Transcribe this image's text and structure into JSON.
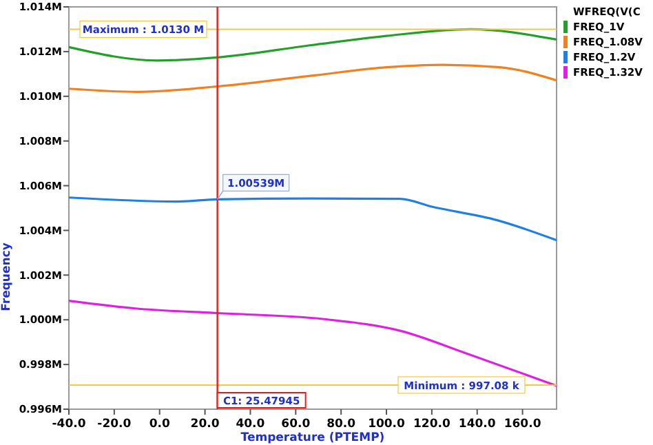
{
  "chart_data": {
    "type": "line",
    "xlabel": "Temperature (PTEMP)",
    "ylabel": "Frequency",
    "legend_title": "WFREQ(V(C",
    "legend": "right",
    "grid": false,
    "marker": "none",
    "line_style": "solid",
    "xlim": [
      -40,
      175
    ],
    "xticks": [
      {
        "value": -40,
        "label": "-40.0"
      },
      {
        "value": -20,
        "label": "-20.0"
      },
      {
        "value": 0,
        "label": "0.0"
      },
      {
        "value": 20,
        "label": "20.0"
      },
      {
        "value": 40,
        "label": "40.0"
      },
      {
        "value": 60,
        "label": "60.0"
      },
      {
        "value": 80,
        "label": "80.0"
      },
      {
        "value": 100,
        "label": "100.0"
      },
      {
        "value": 120,
        "label": "120.0"
      },
      {
        "value": 140,
        "label": "140.0"
      },
      {
        "value": 160,
        "label": "160.0"
      }
    ],
    "ylim": [
      0.996,
      1.014
    ],
    "yticks": [
      {
        "value": 0.996,
        "label": "0.996M"
      },
      {
        "value": 0.998,
        "label": "0.998M"
      },
      {
        "value": 1.0,
        "label": "1.000M"
      },
      {
        "value": 1.002,
        "label": "1.002M"
      },
      {
        "value": 1.004,
        "label": "1.004M"
      },
      {
        "value": 1.006,
        "label": "1.006M"
      },
      {
        "value": 1.008,
        "label": "1.008M"
      },
      {
        "value": 1.01,
        "label": "1.010M"
      },
      {
        "value": 1.012,
        "label": "1.012M"
      },
      {
        "value": 1.014,
        "label": "1.014M"
      }
    ],
    "series": [
      {
        "name": "FREQ_1V",
        "color": "#22a02a",
        "x": [
          -40,
          -1,
          25.5,
          67,
          100,
          137,
          175
        ],
        "values": [
          1.0122,
          1.0116,
          1.01174,
          1.01229,
          1.0127,
          1.013,
          1.01254
        ]
      },
      {
        "name": "FREQ_1.08V",
        "color": "#f08020",
        "x": [
          -40,
          -9.5,
          25.5,
          67,
          100,
          125,
          150,
          175
        ],
        "values": [
          1.01034,
          1.0102,
          1.01044,
          1.01092,
          1.0113,
          1.01141,
          1.0113,
          1.01071
        ]
      },
      {
        "name": "FREQ_1.2V",
        "color": "#2080e0",
        "x": [
          -40,
          8,
          25.5,
          67,
          106,
          120,
          149,
          175
        ],
        "values": [
          1.00547,
          1.00529,
          1.00539,
          1.00543,
          1.00541,
          1.00506,
          1.00445,
          1.00356
        ]
      },
      {
        "name": "FREQ_1.32V",
        "color": "#e020e0",
        "x": [
          -40,
          -10,
          25.5,
          72.6,
          106,
          135.4,
          175
        ],
        "values": [
          1.00085,
          1.0005,
          1.0003,
          1.00003,
          0.99951,
          0.99849,
          0.99705
        ]
      }
    ],
    "ref_lines": [
      {
        "axis": "y",
        "value": 1.013,
        "label": "Maximum : 1.0130 M",
        "color": "#f5c842"
      },
      {
        "axis": "y",
        "value": 0.99708,
        "label": "Minimum : 997.08 k",
        "color": "#f5c842"
      },
      {
        "axis": "x",
        "value": 25.47945,
        "label": "C1: 25.47945",
        "color": "#e02020"
      }
    ],
    "annotations": [
      {
        "text": "1.00539M",
        "x": 25.47945,
        "y": 1.00539
      }
    ]
  }
}
